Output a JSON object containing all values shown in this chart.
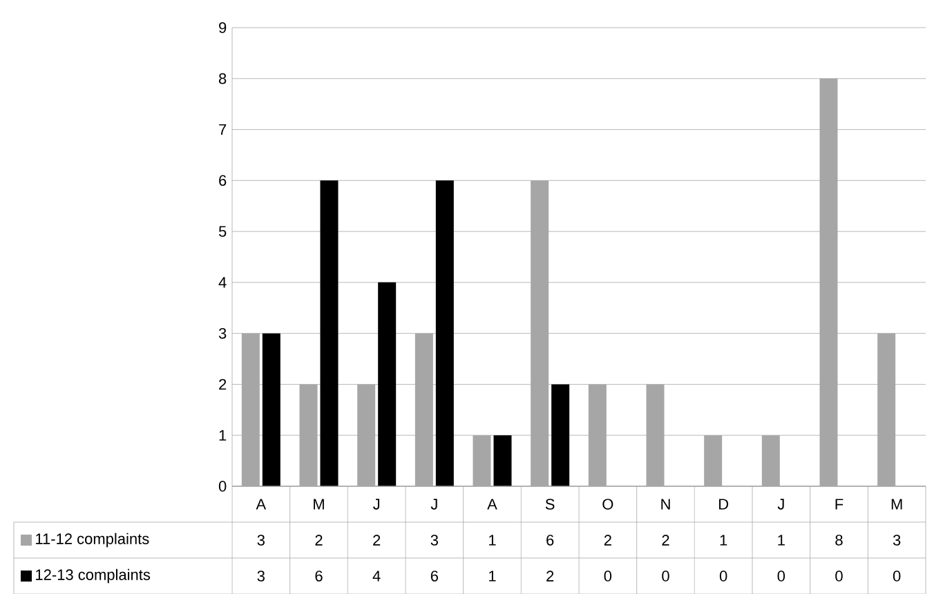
{
  "chart_data": {
    "type": "bar",
    "categories": [
      "A",
      "M",
      "J",
      "J",
      "A",
      "S",
      "O",
      "N",
      "D",
      "J",
      "F",
      "M"
    ],
    "series": [
      {
        "name": "11-12 complaints",
        "color": "#a6a6a6",
        "values": [
          3,
          2,
          2,
          3,
          1,
          6,
          2,
          2,
          1,
          1,
          8,
          3
        ]
      },
      {
        "name": "12-13 complaints",
        "color": "#000000",
        "values": [
          3,
          6,
          4,
          6,
          1,
          2,
          0,
          0,
          0,
          0,
          0,
          0
        ]
      }
    ],
    "ylim": [
      0,
      9
    ],
    "yticks": [
      0,
      1,
      2,
      3,
      4,
      5,
      6,
      7,
      8,
      9
    ],
    "grid": "y",
    "legend": "bottom left",
    "data_labels": true
  }
}
